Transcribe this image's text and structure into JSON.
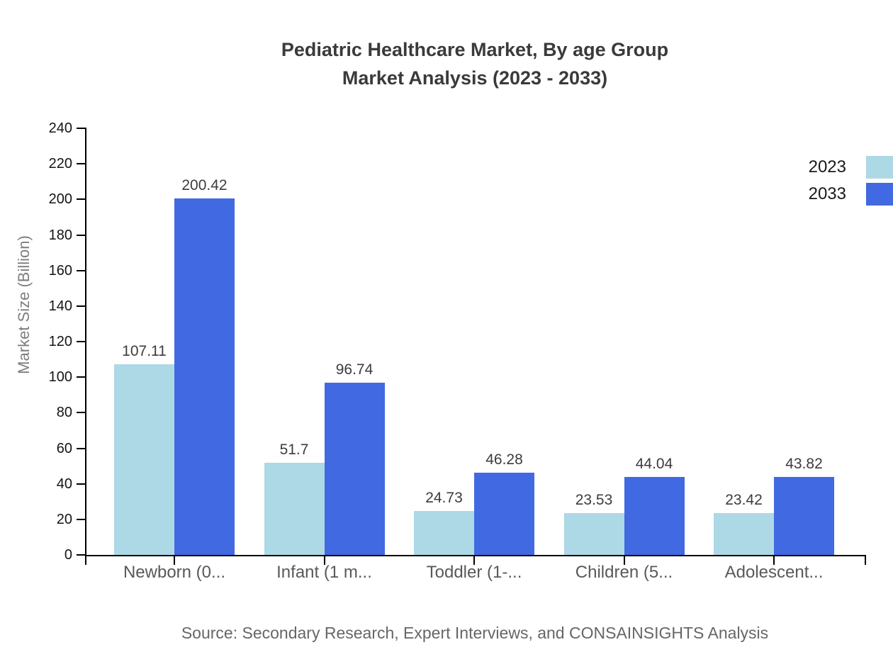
{
  "chart_data": {
    "type": "bar",
    "title": "Pediatric Healthcare Market, By age Group",
    "subtitle": "Market Analysis (2023 - 2033)",
    "ylabel": "Market Size (Billion)",
    "xlabel": "",
    "categories": [
      "Newborn (0...",
      "Infant (1 m...",
      "Toddler (1-...",
      "Children (5...",
      "Adolescent..."
    ],
    "series": [
      {
        "name": "2023",
        "color": "#ADD8E6",
        "values": [
          107.11,
          51.7,
          24.73,
          23.53,
          23.42
        ]
      },
      {
        "name": "2033",
        "color": "#4169E1",
        "values": [
          200.42,
          96.74,
          46.28,
          44.04,
          43.82
        ]
      }
    ],
    "ylim": [
      0,
      240
    ],
    "ytick_step": 20,
    "grid": false,
    "legend_position": "top-right",
    "bar_value_labels": true
  },
  "source_note": "Source: Secondary Research, Expert Interviews, and CONSAINSIGHTS Analysis"
}
